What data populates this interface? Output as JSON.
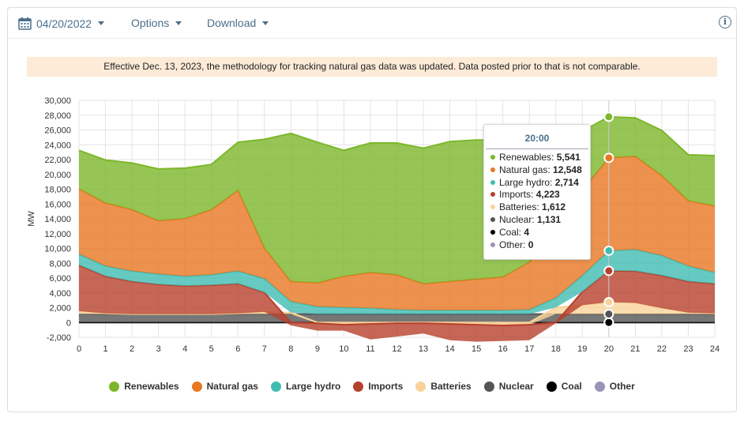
{
  "toolbar": {
    "date": "04/20/2022",
    "options_label": "Options",
    "download_label": "Download"
  },
  "notice": "Effective Dec. 13, 2023, the methodology for tracking natural gas data was updated. Data posted prior to that is not comparable.",
  "tooltip": {
    "title": "20:00",
    "rows": [
      {
        "name": "Renewables",
        "value": "5,541",
        "color": "#7cb72a"
      },
      {
        "name": "Natural gas",
        "value": "12,548",
        "color": "#e87722"
      },
      {
        "name": "Large hydro",
        "value": "2,714",
        "color": "#40bdb3"
      },
      {
        "name": "Imports",
        "value": "4,223",
        "color": "#b6402c"
      },
      {
        "name": "Batteries",
        "value": "1,612",
        "color": "#f9d39a"
      },
      {
        "name": "Nuclear",
        "value": "1,131",
        "color": "#555555"
      },
      {
        "name": "Coal",
        "value": "4",
        "color": "#000000"
      },
      {
        "name": "Other",
        "value": "0",
        "color": "#9c93b8"
      }
    ]
  },
  "chart_data": {
    "type": "area",
    "stacked": true,
    "ylabel": "MW",
    "xlabel": "",
    "xlim": [
      0,
      24
    ],
    "ylim": [
      -2000,
      30000
    ],
    "x_ticks": [
      "0",
      "1",
      "2",
      "3",
      "4",
      "5",
      "6",
      "7",
      "8",
      "9",
      "10",
      "11",
      "12",
      "13",
      "14",
      "15",
      "16",
      "17",
      "18",
      "19",
      "20",
      "21",
      "22",
      "23",
      "24"
    ],
    "y_ticks": [
      "-2,000",
      "0",
      "2,000",
      "4,000",
      "6,000",
      "8,000",
      "10,000",
      "12,000",
      "14,000",
      "16,000",
      "18,000",
      "20,000",
      "22,000",
      "24,000",
      "26,000",
      "28,000",
      "30,000"
    ],
    "grid": true,
    "legend_position": "bottom",
    "x": [
      0,
      1,
      2,
      3,
      4,
      5,
      6,
      7,
      8,
      9,
      10,
      11,
      12,
      13,
      14,
      15,
      16,
      17,
      18,
      19,
      20,
      21,
      22,
      23,
      24
    ],
    "series": [
      {
        "name": "Other",
        "color": "#9c93b8",
        "values": [
          0,
          0,
          0,
          0,
          0,
          0,
          0,
          0,
          0,
          0,
          0,
          0,
          0,
          0,
          0,
          0,
          0,
          0,
          0,
          0,
          0,
          0,
          0,
          0,
          0
        ]
      },
      {
        "name": "Coal",
        "color": "#000000",
        "values": [
          4,
          4,
          4,
          4,
          4,
          4,
          4,
          4,
          4,
          4,
          4,
          4,
          4,
          4,
          4,
          4,
          4,
          4,
          4,
          4,
          4,
          4,
          4,
          4,
          4
        ]
      },
      {
        "name": "Nuclear",
        "color": "#555555",
        "values": [
          1130,
          1130,
          1130,
          1130,
          1130,
          1130,
          1130,
          1130,
          1130,
          1131,
          1131,
          1131,
          1131,
          1131,
          1131,
          1131,
          1131,
          1131,
          1131,
          1131,
          1131,
          1131,
          1131,
          1131,
          1131
        ]
      },
      {
        "name": "Batteries",
        "color": "#f9d39a",
        "values": [
          400,
          100,
          0,
          0,
          0,
          0,
          100,
          300,
          200,
          -100,
          -300,
          -200,
          -100,
          -100,
          -200,
          -300,
          -400,
          -300,
          900,
          1200,
          1612,
          1500,
          800,
          200,
          100
        ]
      },
      {
        "name": "Imports",
        "color": "#b6402c",
        "values": [
          6200,
          5000,
          4400,
          4000,
          3800,
          3900,
          4000,
          2600,
          -400,
          -1000,
          -800,
          -2100,
          -1800,
          -1400,
          -2200,
          -2300,
          -2100,
          -2100,
          -100,
          1800,
          4223,
          4300,
          4400,
          4200,
          4000
        ]
      },
      {
        "name": "Large hydro",
        "color": "#40bdb3",
        "values": [
          1500,
          1400,
          1400,
          1400,
          1300,
          1400,
          1700,
          1900,
          1500,
          1000,
          900,
          800,
          600,
          500,
          500,
          500,
          500,
          600,
          1300,
          2200,
          2714,
          2900,
          2700,
          2100,
          1500
        ]
      },
      {
        "name": "Natural gas",
        "color": "#e87722",
        "values": [
          8800,
          8500,
          8300,
          7200,
          7800,
          8800,
          10900,
          4100,
          2700,
          3200,
          4200,
          4800,
          4700,
          3600,
          3900,
          4200,
          4500,
          6400,
          8500,
          11500,
          12548,
          12600,
          10800,
          8800,
          9000
        ]
      },
      {
        "name": "Renewables",
        "color": "#7cb72a",
        "values": [
          5200,
          5800,
          6300,
          7000,
          6800,
          6100,
          6500,
          14700,
          20000,
          19000,
          17000,
          17500,
          17800,
          18300,
          18900,
          18800,
          18500,
          15200,
          10400,
          8000,
          5541,
          5200,
          6100,
          6200,
          6800
        ]
      }
    ],
    "hover_x": 20
  }
}
